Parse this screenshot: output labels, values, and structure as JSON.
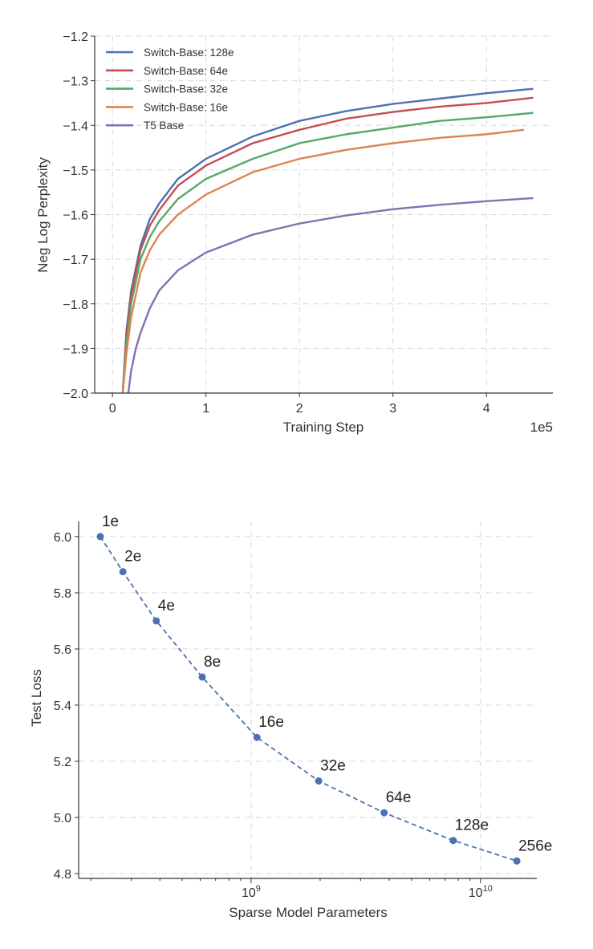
{
  "chart_data": [
    {
      "type": "line",
      "title": "",
      "xlabel": "Training Step",
      "ylabel": "Neg Log Perplexity",
      "x_scale_label": "1e5",
      "xlim": [
        -0.19,
        4.71
      ],
      "ylim": [
        -2.0,
        -1.2
      ],
      "xticks": [
        "0",
        "1",
        "2",
        "3",
        "4"
      ],
      "yticks": [
        "−2.0",
        "−1.9",
        "−1.8",
        "−1.7",
        "−1.6",
        "−1.5",
        "−1.4",
        "−1.3",
        "−1.2"
      ],
      "grid": true,
      "legend_position": "top-left",
      "series": [
        {
          "name": "Switch-Base: 128e",
          "color": "#4c72b0",
          "x": [
            0.11,
            0.15,
            0.2,
            0.3,
            0.4,
            0.5,
            0.7,
            1.0,
            1.5,
            2.0,
            2.5,
            3.0,
            3.5,
            4.0,
            4.5
          ],
          "y": [
            -2.0,
            -1.86,
            -1.77,
            -1.67,
            -1.61,
            -1.575,
            -1.52,
            -1.475,
            -1.425,
            -1.39,
            -1.368,
            -1.352,
            -1.34,
            -1.328,
            -1.318
          ]
        },
        {
          "name": "Switch-Base: 64e",
          "color": "#c44e52",
          "x": [
            0.11,
            0.15,
            0.2,
            0.3,
            0.4,
            0.5,
            0.7,
            1.0,
            1.5,
            2.0,
            2.5,
            3.0,
            3.5,
            4.0,
            4.5
          ],
          "y": [
            -2.0,
            -1.87,
            -1.78,
            -1.68,
            -1.625,
            -1.59,
            -1.535,
            -1.49,
            -1.44,
            -1.41,
            -1.385,
            -1.37,
            -1.358,
            -1.35,
            -1.338
          ]
        },
        {
          "name": "Switch-Base: 32e",
          "color": "#55a868",
          "x": [
            0.11,
            0.15,
            0.2,
            0.3,
            0.4,
            0.5,
            0.7,
            1.0,
            1.5,
            2.0,
            2.5,
            3.0,
            3.5,
            4.0,
            4.5
          ],
          "y": [
            -2.0,
            -1.89,
            -1.8,
            -1.7,
            -1.65,
            -1.615,
            -1.565,
            -1.52,
            -1.475,
            -1.44,
            -1.42,
            -1.405,
            -1.39,
            -1.382,
            -1.372
          ]
        },
        {
          "name": "Switch-Base: 16e",
          "color": "#dd8452",
          "x": [
            0.11,
            0.15,
            0.2,
            0.3,
            0.4,
            0.5,
            0.7,
            1.0,
            1.5,
            2.0,
            2.5,
            3.0,
            3.5,
            4.0,
            4.4
          ],
          "y": [
            -2.0,
            -1.91,
            -1.83,
            -1.73,
            -1.68,
            -1.645,
            -1.6,
            -1.555,
            -1.505,
            -1.475,
            -1.455,
            -1.44,
            -1.428,
            -1.42,
            -1.41
          ]
        },
        {
          "name": "T5 Base",
          "color": "#8172b3",
          "x": [
            0.17,
            0.2,
            0.25,
            0.3,
            0.4,
            0.5,
            0.7,
            1.0,
            1.5,
            2.0,
            2.5,
            3.0,
            3.5,
            4.0,
            4.5
          ],
          "y": [
            -2.0,
            -1.95,
            -1.9,
            -1.865,
            -1.81,
            -1.77,
            -1.725,
            -1.685,
            -1.645,
            -1.62,
            -1.602,
            -1.588,
            -1.578,
            -1.57,
            -1.563
          ]
        }
      ]
    },
    {
      "type": "line",
      "title": "",
      "xlabel": "Sparse Model Parameters",
      "ylabel": "Test Loss",
      "x_scale": "log",
      "xlim": [
        177000000,
        17600000000
      ],
      "ylim": [
        4.783,
        6.054
      ],
      "xticks": [
        {
          "base": "10",
          "exp": "9",
          "value": 1000000000
        },
        {
          "base": "10",
          "exp": "10",
          "value": 10000000000
        }
      ],
      "yticks": [
        "4.8",
        "5.0",
        "5.2",
        "5.4",
        "5.6",
        "5.8",
        "6.0"
      ],
      "grid": true,
      "series": [
        {
          "name": "Switch-Base",
          "color": "#4c72b0",
          "linestyle": "dashed",
          "x": [
            220000000,
            276000000,
            386000000,
            612000000,
            1060000000,
            1970000000,
            3800000000,
            7600000000,
            14400000000
          ],
          "y": [
            6.0,
            5.875,
            5.7,
            5.5,
            5.285,
            5.13,
            5.017,
            4.918,
            4.845
          ],
          "labels": [
            "1e",
            "2e",
            "4e",
            "8e",
            "16e",
            "32e",
            "64e",
            "128e",
            "256e"
          ]
        }
      ]
    }
  ]
}
